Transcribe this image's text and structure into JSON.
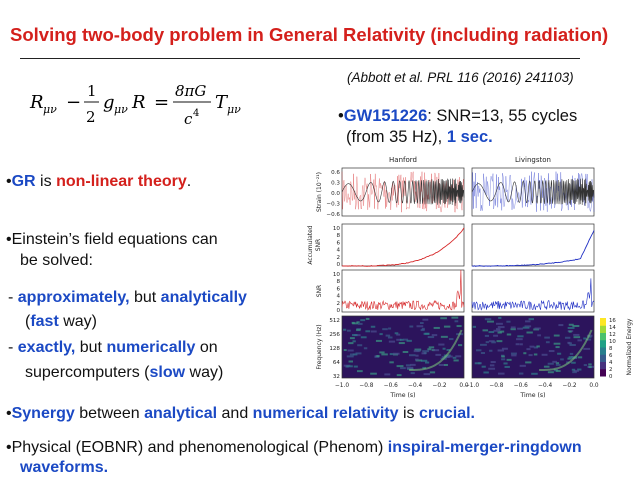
{
  "title": "Solving two-body problem in General Relativity (including radiation)",
  "equation": {
    "R": "R",
    "mu_nu": "μν",
    "minus": "−",
    "one": "1",
    "two": "2",
    "g": "g",
    "R2": "R",
    "equals": "=",
    "eight_pi_G": "8πG",
    "c4": "c",
    "four": "4",
    "T": "T"
  },
  "citation": "(Abbott et al. PRL 116 (2016) 241103)",
  "gw": {
    "bullet": "•",
    "name": "GW151226",
    "rest1": ": SNR=13, 55 cycles",
    "rest2a": "(from 35 Hz), ",
    "rest2b": "1 sec."
  },
  "bullets": {
    "gr_a": "GR",
    "gr_b": " is ",
    "gr_c": "non-linear theory",
    "gr_d": ".",
    "einstein_1": "Einstein’s field equations can",
    "einstein_2": "be solved:",
    "approx_a": "- ",
    "approx_b": "approximately,",
    "approx_c": " but ",
    "approx_d": "analytically",
    "fast_a": "(",
    "fast_b": "fast",
    "fast_c": " way)",
    "exact_a": "- ",
    "exact_b": "exactly,",
    "exact_c": " but ",
    "exact_d": "numerically",
    "exact_e": " on",
    "super_a": "supercomputers (",
    "super_b": "slow",
    "super_c": " way)",
    "syn_a": "Synergy",
    "syn_b": " between ",
    "syn_c": "analytical",
    "syn_d": " and ",
    "syn_e": "numerical relativity",
    "syn_f": " is ",
    "syn_g": "crucial.",
    "phys_a": "Physical (EOBNR) and phenomenological (Phenom) ",
    "phys_b": "inspiral-merger-ringdown",
    "phys_c": "waveforms."
  },
  "figure": {
    "panel_titles": [
      "Hanford",
      "Livingston"
    ],
    "strain_ylabel": "Strain (10⁻²¹)",
    "strain_ticks": [
      "0.6",
      "0.3",
      "0.0",
      "−0.3",
      "−0.6"
    ],
    "acc_ylabel_1": "Accumulated",
    "acc_ylabel_2": "SNR",
    "acc_ticks": [
      "10",
      "8",
      "6",
      "4",
      "2",
      "0"
    ],
    "snr_ylabel": "SNR",
    "snr_ticks": [
      "10",
      "8",
      "6",
      "4",
      "2",
      "0"
    ],
    "freq_ylabel": "Frequency (Hz)",
    "freq_ticks": [
      "512",
      "256",
      "128",
      "64",
      "32"
    ],
    "time_ticks": [
      "−1.0",
      "−0.8",
      "−0.6",
      "−0.4",
      "−0.2",
      "0.0"
    ],
    "xlabel": "Time (s)",
    "colorbar_ticks": [
      "16",
      "14",
      "12",
      "10",
      "8",
      "6",
      "4",
      "2",
      "0"
    ],
    "colorbar_label": "Normalized Energy",
    "colors": {
      "hanford": "#d62728",
      "livingston": "#1f2fc4",
      "spec_bg": "#2c145c"
    }
  }
}
